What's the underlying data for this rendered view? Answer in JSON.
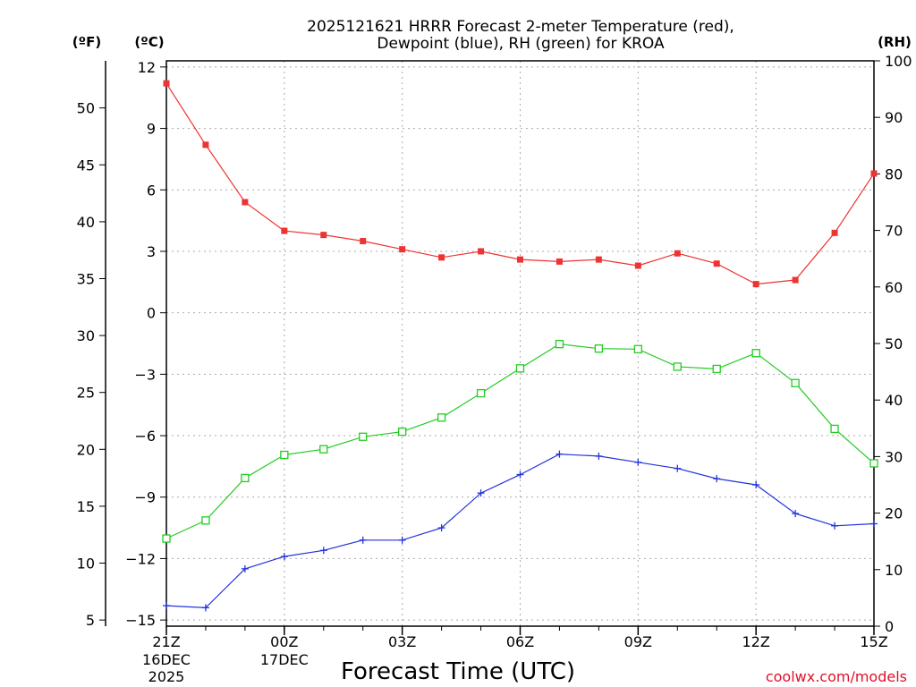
{
  "chart_data": {
    "type": "line",
    "title_line1": "2025121621 HRRR Forecast 2-meter Temperature (red),",
    "title_line2": "Dewpoint (blue), RH (green) for KROA",
    "xlabel": "Forecast Time (UTC)",
    "credit": "coolwx.com/models",
    "units": {
      "fahrenheit": "(ºF)",
      "celsius": "(ºC)",
      "rh": "(RH)"
    },
    "celsius_axis": {
      "ylim": [
        -15.3,
        12.3
      ],
      "ticks": [
        "12",
        "9",
        "6",
        "3",
        "0",
        "-3",
        "-6",
        "-9",
        "-12",
        "-15"
      ]
    },
    "fahrenheit_axis": {
      "ticks": [
        "50",
        "45",
        "40",
        "35",
        "30",
        "25",
        "20",
        "15",
        "10",
        "5"
      ]
    },
    "rh_axis": {
      "ylim": [
        0,
        100
      ],
      "ticks": [
        "100",
        "90",
        "80",
        "70",
        "60",
        "50",
        "40",
        "30",
        "20",
        "10",
        "0"
      ]
    },
    "x_hours": [
      0,
      1,
      2,
      3,
      4,
      5,
      6,
      7,
      8,
      9,
      10,
      11,
      12,
      13,
      14,
      15,
      16,
      17,
      18
    ],
    "x_ticks": [
      {
        "label": "21Z",
        "sub1": "16DEC",
        "sub2": "2025"
      },
      {
        "label": "00Z",
        "sub1": "17DEC",
        "sub2": ""
      },
      {
        "label": "03Z",
        "sub1": "",
        "sub2": ""
      },
      {
        "label": "06Z",
        "sub1": "",
        "sub2": ""
      },
      {
        "label": "09Z",
        "sub1": "",
        "sub2": ""
      },
      {
        "label": "12Z",
        "sub1": "",
        "sub2": ""
      },
      {
        "label": "15Z",
        "sub1": "",
        "sub2": ""
      }
    ],
    "series": [
      {
        "name": "2-meter Temperature",
        "axis": "celsius",
        "color": "#ee3333",
        "marker": "filled-square",
        "values": [
          11.2,
          8.2,
          5.4,
          4.0,
          3.8,
          3.5,
          3.1,
          2.7,
          3.0,
          2.6,
          2.5,
          2.6,
          2.3,
          2.9,
          2.4,
          1.4,
          1.6,
          3.9,
          6.8
        ]
      },
      {
        "name": "Dewpoint",
        "axis": "celsius",
        "color": "#2233dd",
        "marker": "plus",
        "values": [
          -14.3,
          -14.4,
          -12.5,
          -11.9,
          -11.6,
          -11.1,
          -11.1,
          -10.5,
          -8.8,
          -7.9,
          -6.9,
          -7.0,
          -7.3,
          -7.6,
          -8.1,
          -8.4,
          -9.8,
          -10.4,
          -10.3
        ]
      },
      {
        "name": "RH",
        "axis": "rh",
        "color": "#22cc22",
        "marker": "open-square",
        "values": [
          15.5,
          18.7,
          26.2,
          30.3,
          31.3,
          33.5,
          34.4,
          36.9,
          41.2,
          45.6,
          49.9,
          49.1,
          49.0,
          45.9,
          45.5,
          48.3,
          43.0,
          34.9,
          28.8
        ]
      }
    ]
  }
}
